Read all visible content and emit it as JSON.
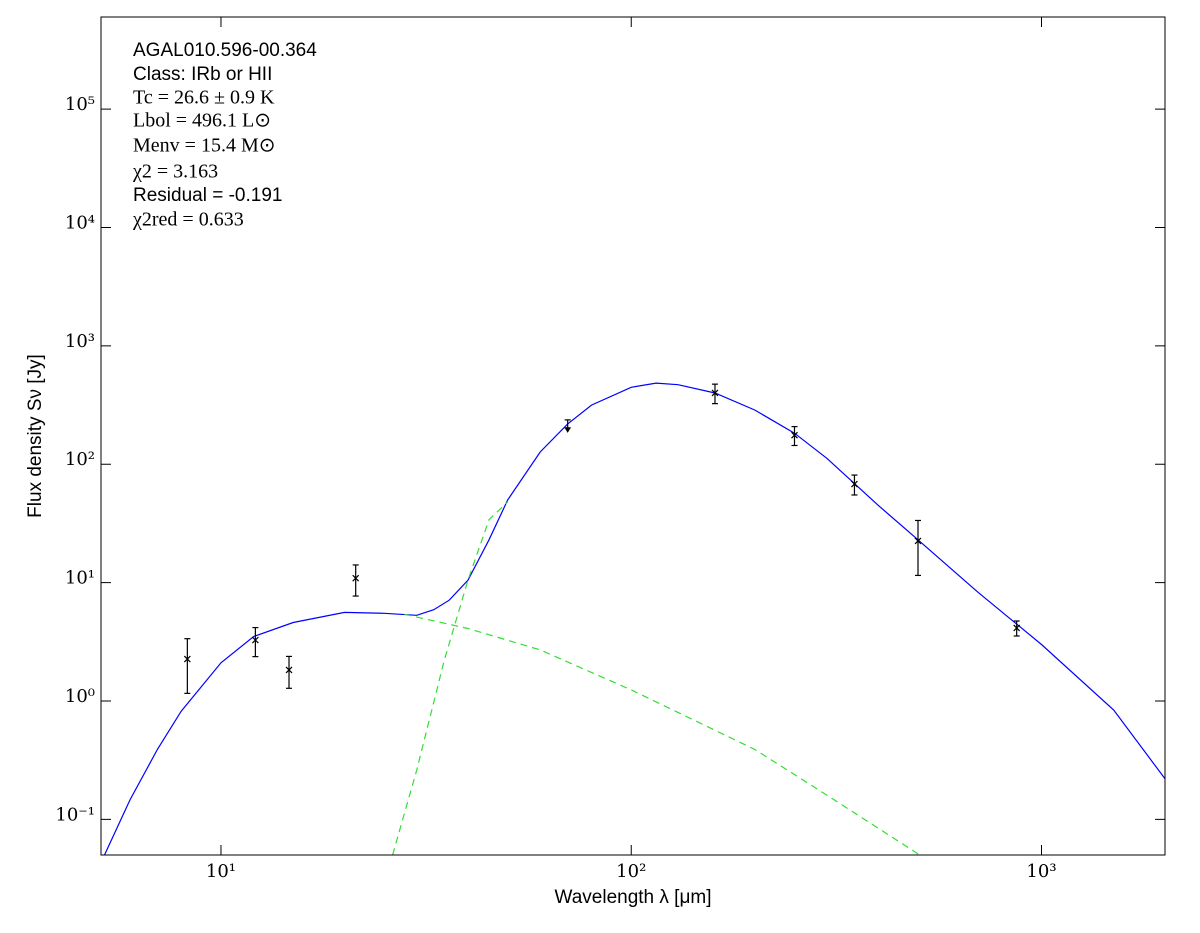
{
  "chart_data": {
    "type": "scatter",
    "xlabel": "Wavelength λ [μm]",
    "ylabel": "Flux density Sν [Jy]",
    "xscale": "log",
    "yscale": "log",
    "xlim": [
      5.1,
      2000
    ],
    "ylim": [
      0.05,
      600000
    ],
    "xticks": [
      {
        "value": 10,
        "label": "10¹"
      },
      {
        "value": 100,
        "label": "10²"
      },
      {
        "value": 1000,
        "label": "10³"
      }
    ],
    "yticks": [
      {
        "value": 0.1,
        "label": "10⁻¹"
      },
      {
        "value": 1,
        "label": "10⁰"
      },
      {
        "value": 10,
        "label": "10¹"
      },
      {
        "value": 100,
        "label": "10²"
      },
      {
        "value": 1000,
        "label": "10³"
      },
      {
        "value": 10000,
        "label": "10⁴"
      },
      {
        "value": 100000,
        "label": "10⁵"
      }
    ],
    "annotations": [
      "AGAL010.596-00.364",
      "Class: IRb or HII",
      "Tc = 26.6 ± 0.9 K",
      "Lbol = 496.1 L⊙",
      "Menv = 15.4 M⊙",
      "χ2 = 3.163",
      "Residual = -0.191",
      "χ2red = 0.633"
    ],
    "points": {
      "color": "#000000",
      "x": [
        8.28,
        12.13,
        14.65,
        21.3,
        70,
        160,
        250,
        350,
        500,
        870
      ],
      "values": [
        2.26,
        3.27,
        1.83,
        10.9,
        220,
        400,
        176,
        68,
        22.5,
        4.14
      ],
      "errors": [
        1.1,
        0.9,
        0.55,
        3.2,
        17,
        75,
        32,
        13,
        11,
        0.6
      ],
      "upper_limit": [
        false,
        false,
        false,
        false,
        true,
        false,
        false,
        false,
        false,
        false
      ]
    },
    "curves": [
      {
        "color": "#0000ff",
        "dashed": false,
        "x": [
          5.2,
          6,
          7,
          8,
          10,
          12,
          15,
          20,
          25,
          30,
          33,
          36,
          40,
          45,
          50,
          60,
          70,
          80,
          100,
          115,
          130,
          160,
          200,
          250,
          300,
          400,
          500,
          700,
          1000,
          1500,
          2000
        ],
        "values": [
          0.05,
          0.146,
          0.39,
          0.82,
          2.1,
          3.5,
          4.6,
          5.6,
          5.5,
          5.3,
          5.9,
          7.1,
          10.5,
          23,
          50,
          127,
          219,
          316,
          447,
          485,
          470,
          400,
          287,
          183,
          112,
          45,
          23,
          8.3,
          3.0,
          0.84,
          0.22
        ]
      },
      {
        "color": "#33dd33",
        "dashed": true,
        "x": [
          28,
          40,
          60,
          100,
          200,
          300,
          505
        ],
        "values": [
          5.4,
          4.1,
          2.7,
          1.24,
          0.39,
          0.16,
          0.05
        ]
      },
      {
        "color": "#33dd33",
        "dashed": true,
        "x": [
          26.2,
          30,
          35,
          40,
          45,
          50
        ],
        "values": [
          0.05,
          0.26,
          2.2,
          10.5,
          34,
          48
        ]
      }
    ]
  }
}
